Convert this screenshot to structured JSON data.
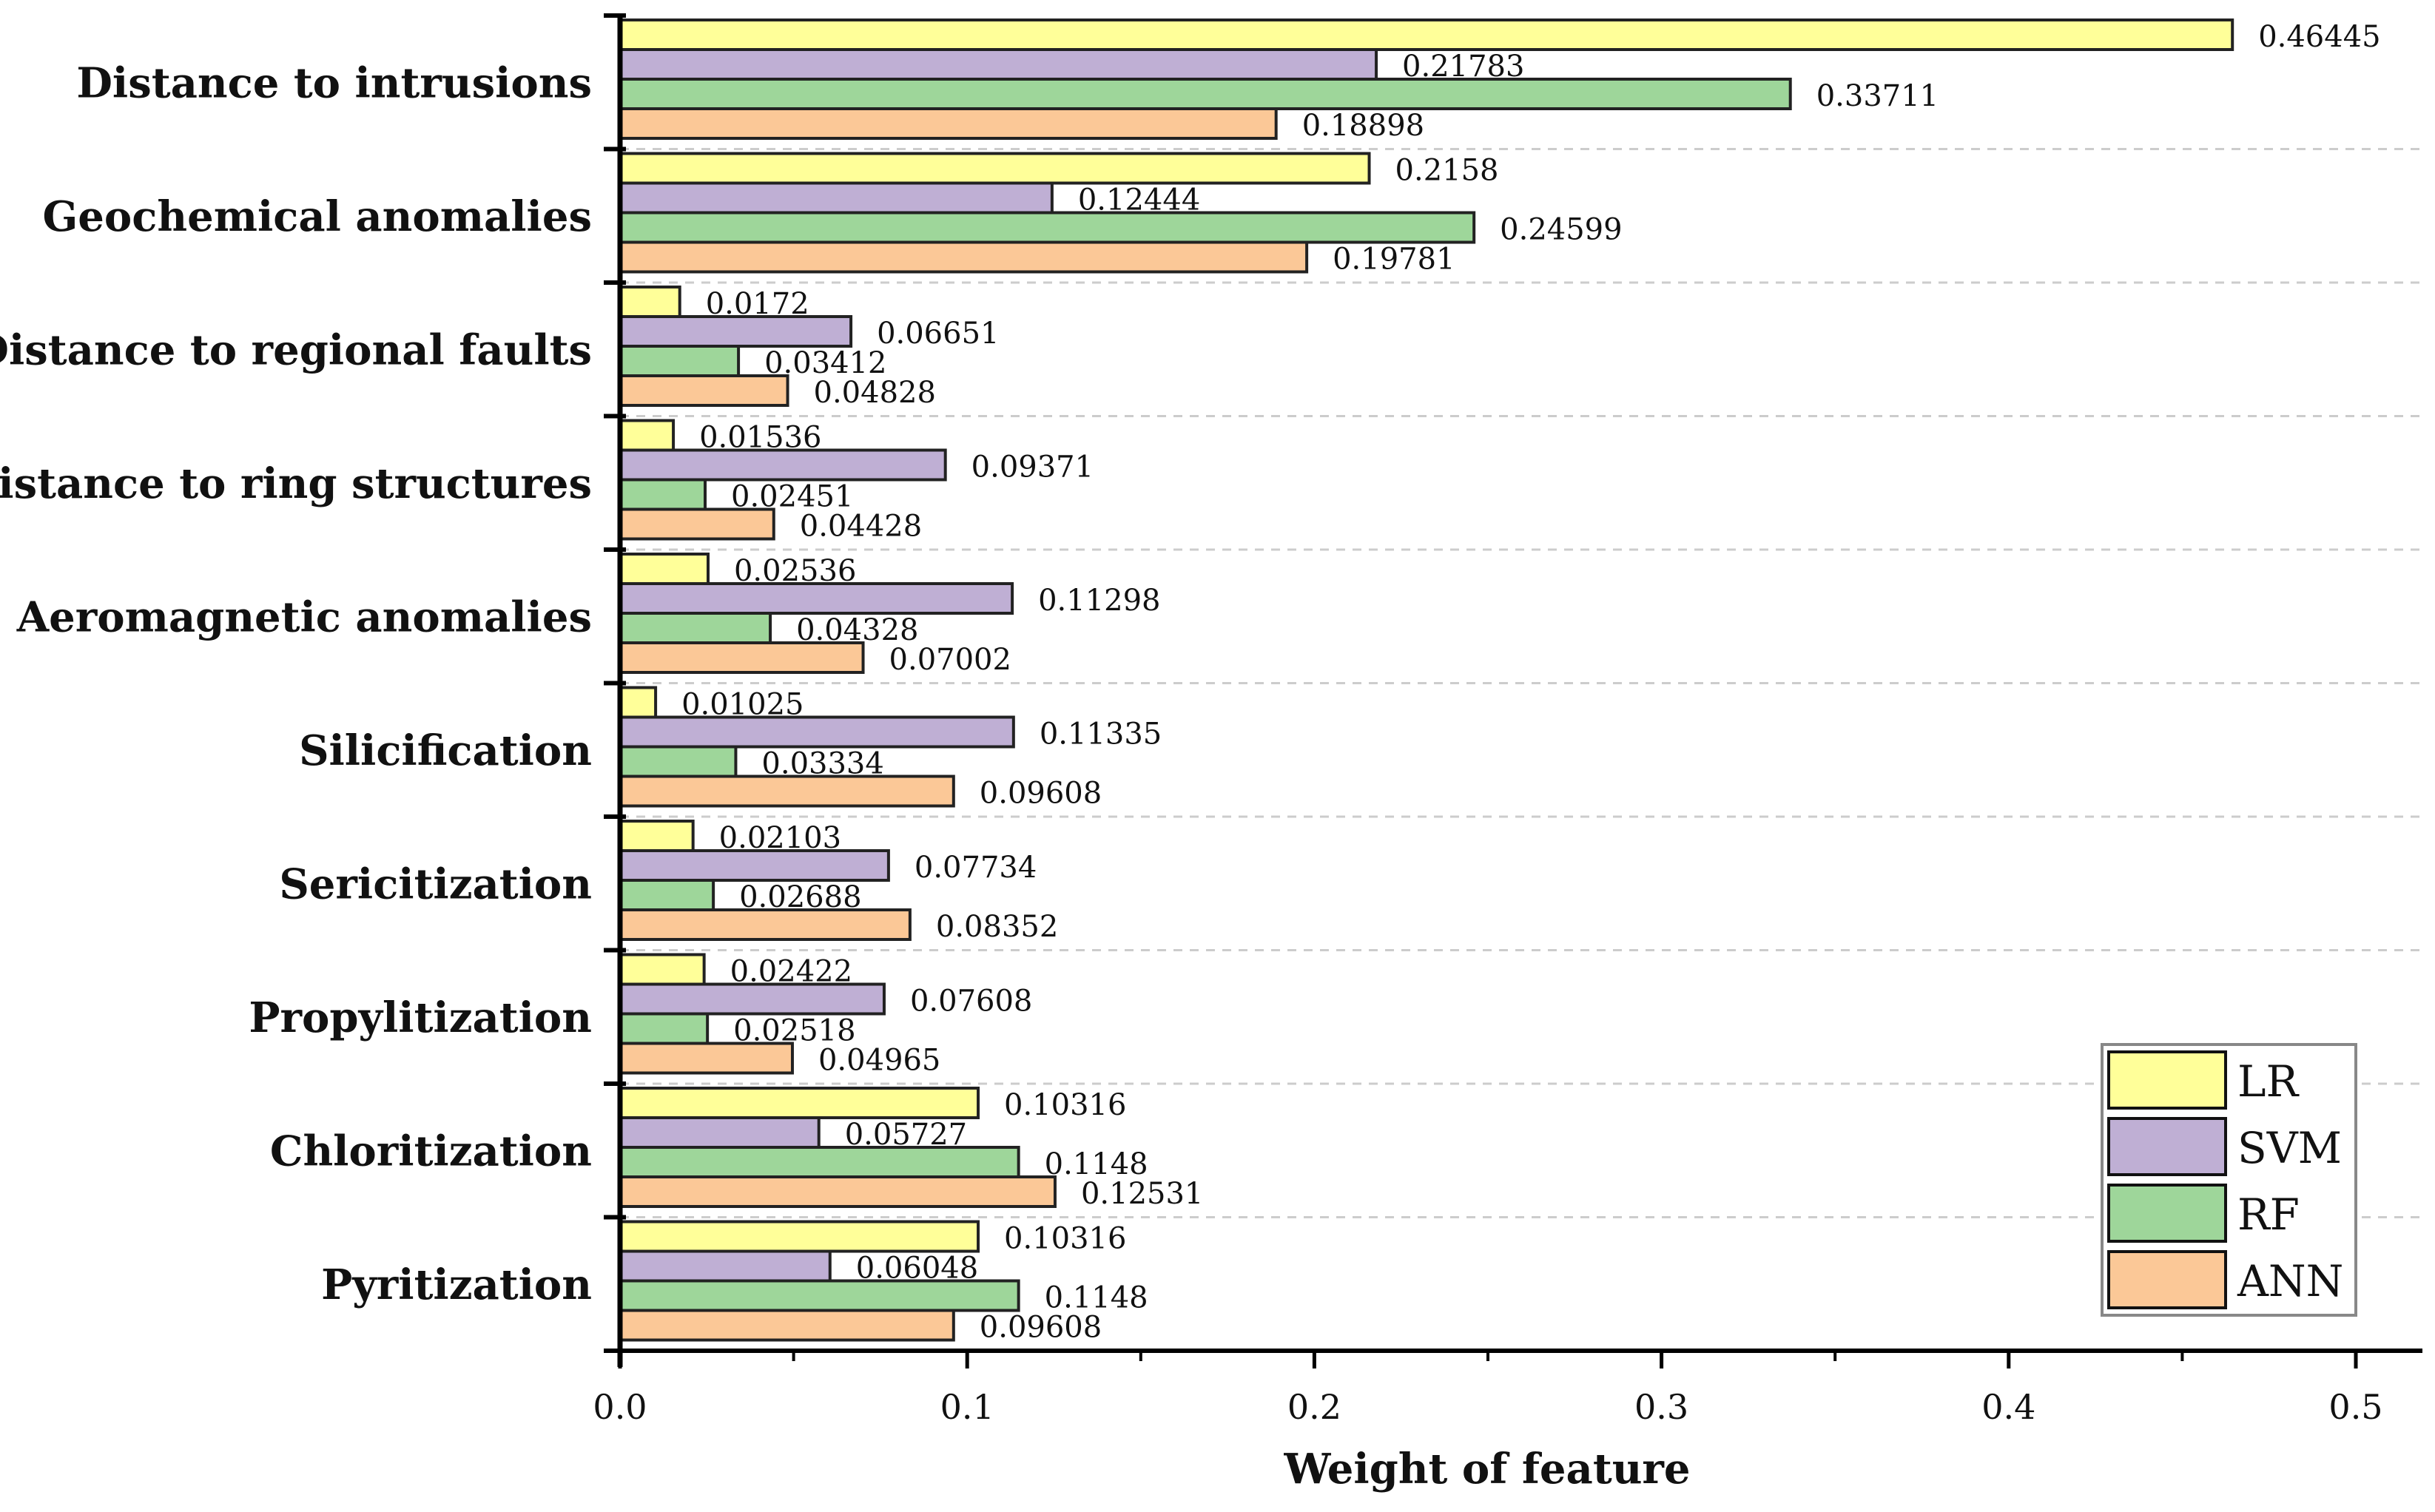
{
  "chart_data": {
    "type": "bar",
    "orientation": "horizontal",
    "title": "",
    "xlabel": "Weight of feature",
    "ylabel": "",
    "xlim": [
      0,
      0.52
    ],
    "xticks": [
      0,
      0.1,
      0.2,
      0.3,
      0.4,
      0.5
    ],
    "xtick_labels": [
      "0.0",
      "0.1",
      "0.2",
      "0.3",
      "0.4",
      "0.5"
    ],
    "grid": "horizontal dashed separators between categories",
    "legend_position": "bottom-right",
    "categories": [
      "Distance to intrusions",
      "Geochemical anomalies",
      "Distance to regional faults",
      "Distance to ring structures",
      "Aeromagnetic anomalies",
      "Silicification",
      "Sericitization",
      "Propylitization",
      "Chloritization",
      "Pyritization"
    ],
    "series": [
      {
        "name": "LR",
        "color": "#FFFF99",
        "values": [
          0.46445,
          0.2158,
          0.0172,
          0.01536,
          0.02536,
          0.01025,
          0.02103,
          0.02422,
          0.10316,
          0.10316
        ],
        "labels": [
          "0.46445",
          "0.2158",
          "0.0172",
          "0.01536",
          "0.02536",
          "0.01025",
          "0.02103",
          "0.02422",
          "0.10316",
          "0.10316"
        ]
      },
      {
        "name": "SVM",
        "color": "#BFAFD4",
        "values": [
          0.21783,
          0.12444,
          0.06651,
          0.09371,
          0.11298,
          0.11335,
          0.07734,
          0.07608,
          0.05727,
          0.06048
        ],
        "labels": [
          "0.21783",
          "0.12444",
          "0.06651",
          "0.09371",
          "0.11298",
          "0.11335",
          "0.07734",
          "0.07608",
          "0.05727",
          "0.06048"
        ]
      },
      {
        "name": "RF",
        "color": "#9ED69A",
        "values": [
          0.33711,
          0.24599,
          0.03412,
          0.02451,
          0.04328,
          0.03334,
          0.02688,
          0.02518,
          0.1148,
          0.1148
        ],
        "labels": [
          "0.33711",
          "0.24599",
          "0.03412",
          "0.02451",
          "0.04328",
          "0.03334",
          "0.02688",
          "0.02518",
          "0.1148",
          "0.1148"
        ]
      },
      {
        "name": "ANN",
        "color": "#FBC897",
        "values": [
          0.18898,
          0.19781,
          0.04828,
          0.04428,
          0.07002,
          0.09608,
          0.08352,
          0.04965,
          0.12531,
          0.09608
        ],
        "labels": [
          "0.18898",
          "0.19781",
          "0.04828",
          "0.04428",
          "0.07002",
          "0.09608",
          "0.08352",
          "0.04965",
          "0.12531",
          "0.09608"
        ]
      }
    ]
  }
}
